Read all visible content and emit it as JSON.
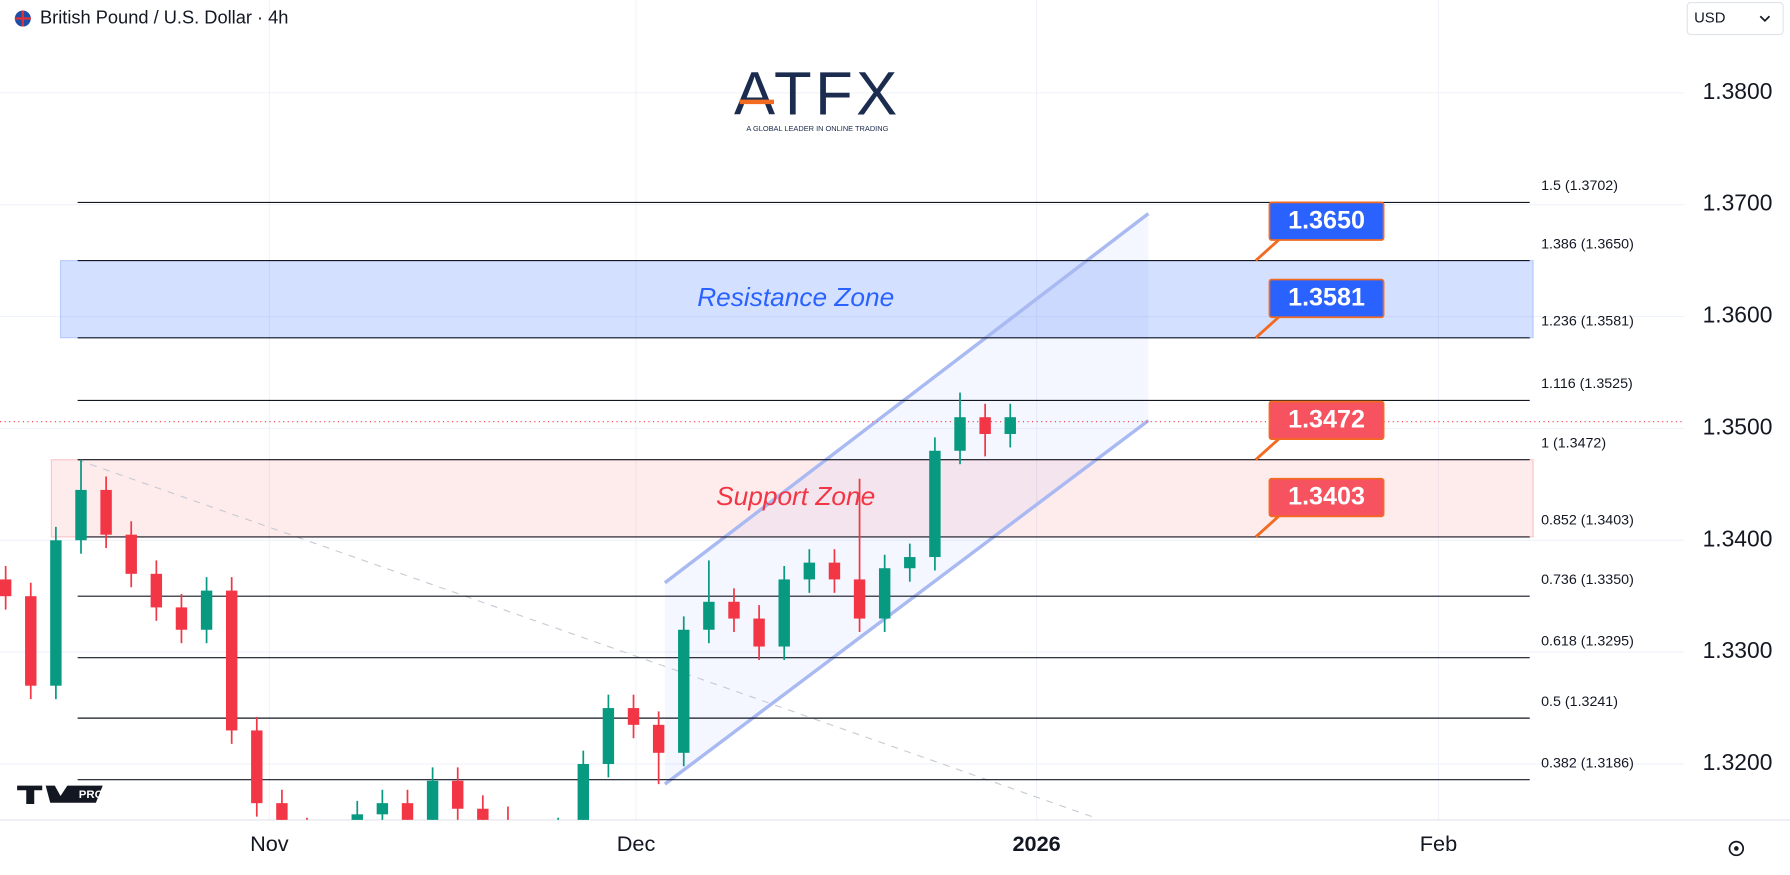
{
  "header": {
    "symbol": "British Pound / U.S. Dollar · 4h",
    "currency": "USD"
  },
  "logo": {
    "brand": "ATFX",
    "tagline": "A GLOBAL LEADER IN ONLINE TRADING"
  },
  "badge": "PRO",
  "chart_data": {
    "type": "candlestick",
    "up_color": "#089981",
    "down_color": "#f23645",
    "x": [
      -21,
      -19,
      -17,
      -15,
      -13,
      -11,
      -9,
      -7,
      -5,
      -3,
      -1,
      1,
      3,
      5,
      7,
      9,
      11,
      13,
      15,
      17,
      19,
      21,
      23,
      25,
      27,
      29,
      31,
      33,
      35,
      37,
      39,
      41,
      43,
      45,
      47,
      49,
      51,
      53,
      55,
      57,
      59
    ],
    "open": [
      1.3365,
      1.335,
      1.327,
      1.34,
      1.3445,
      1.3405,
      1.337,
      1.334,
      1.332,
      1.3355,
      1.323,
      1.3165,
      1.314,
      1.312,
      1.313,
      1.3155,
      1.3165,
      1.315,
      1.3185,
      1.316,
      1.315,
      1.3135,
      1.313,
      1.314,
      1.32,
      1.325,
      1.3235,
      1.321,
      1.332,
      1.3345,
      1.333,
      1.3305,
      1.3365,
      1.338,
      1.3365,
      1.333,
      1.3375,
      1.3385,
      1.348,
      1.351,
      1.3495
    ],
    "high": [
      1.3377,
      1.3362,
      1.3412,
      1.3472,
      1.3457,
      1.3417,
      1.3382,
      1.3352,
      1.3367,
      1.3367,
      1.3242,
      1.3177,
      1.3152,
      1.3142,
      1.3167,
      1.3177,
      1.3177,
      1.3197,
      1.3197,
      1.3172,
      1.3162,
      1.3147,
      1.3152,
      1.3212,
      1.3262,
      1.3262,
      1.3247,
      1.3332,
      1.3382,
      1.3357,
      1.3342,
      1.3377,
      1.3392,
      1.3392,
      1.3455,
      1.3387,
      1.3397,
      1.3492,
      1.3532,
      1.3522,
      1.3522
    ],
    "low": [
      1.3338,
      1.3258,
      1.3258,
      1.3388,
      1.3393,
      1.3358,
      1.3328,
      1.3308,
      1.3308,
      1.3218,
      1.3153,
      1.3128,
      1.3108,
      1.3108,
      1.3118,
      1.3143,
      1.3138,
      1.3138,
      1.3148,
      1.3138,
      1.3123,
      1.3118,
      1.3118,
      1.3128,
      1.3188,
      1.3223,
      1.3182,
      1.3198,
      1.3308,
      1.3318,
      1.3293,
      1.3293,
      1.3353,
      1.3353,
      1.3318,
      1.3318,
      1.3363,
      1.3373,
      1.3468,
      1.3475,
      1.3483
    ],
    "close": [
      1.335,
      1.327,
      1.34,
      1.3445,
      1.3405,
      1.337,
      1.334,
      1.332,
      1.3355,
      1.323,
      1.3165,
      1.314,
      1.312,
      1.313,
      1.3155,
      1.3165,
      1.315,
      1.3185,
      1.316,
      1.315,
      1.3135,
      1.313,
      1.314,
      1.32,
      1.325,
      1.3235,
      1.321,
      1.332,
      1.3345,
      1.333,
      1.3305,
      1.3365,
      1.338,
      1.3365,
      1.333,
      1.3375,
      1.3385,
      1.348,
      1.351,
      1.3495,
      1.351
    ],
    "xlim": [
      -21.45,
      112.64
    ],
    "xticks": [
      {
        "value": 0,
        "label": "Nov"
      },
      {
        "value": 29.2,
        "label": "Dec"
      },
      {
        "value": 61.1,
        "label": "2026"
      },
      {
        "value": 93.1,
        "label": "Feb"
      }
    ],
    "ylim": [
      1.315,
      1.38827
    ],
    "yticks": [
      {
        "value": 1.32,
        "label": "1.3200"
      },
      {
        "value": 1.33,
        "label": "1.3300"
      },
      {
        "value": 1.34,
        "label": "1.3400"
      },
      {
        "value": 1.35,
        "label": "1.3500"
      },
      {
        "value": 1.36,
        "label": "1.3600"
      },
      {
        "value": 1.37,
        "label": "1.3700"
      },
      {
        "value": 1.38,
        "label": "1.3800"
      }
    ],
    "grid": true,
    "fib_levels": [
      {
        "value": 1.3702,
        "label": "1.5 (1.3702)"
      },
      {
        "value": 1.365,
        "label": "1.386 (1.3650)"
      },
      {
        "value": 1.3581,
        "label": "1.236 (1.3581)"
      },
      {
        "value": 1.3525,
        "label": "1.116 (1.3525)"
      },
      {
        "value": 1.3472,
        "label": "1 (1.3472)"
      },
      {
        "value": 1.3403,
        "label": "0.852 (1.3403)"
      },
      {
        "value": 1.335,
        "label": "0.736 (1.3350)"
      },
      {
        "value": 1.3295,
        "label": "0.618 (1.3295)"
      },
      {
        "value": 1.3241,
        "label": "0.5 (1.3241)"
      },
      {
        "value": 1.3186,
        "label": "0.382 (1.3186)"
      }
    ],
    "zones": [
      {
        "name": "Resistance Zone",
        "low": 1.3581,
        "high": 1.365,
        "color": "#2962ff"
      },
      {
        "name": "Support Zone",
        "low": 1.3403,
        "high": 1.3472,
        "color": "#f23645"
      }
    ],
    "callouts": [
      {
        "value": 1.365,
        "label": "1.3650",
        "color": "#2962ff"
      },
      {
        "value": 1.3581,
        "label": "1.3581",
        "color": "#2962ff"
      },
      {
        "value": 1.3472,
        "label": "1.3472",
        "color": "#f7525f"
      },
      {
        "value": 1.3403,
        "label": "1.3403",
        "color": "#f7525f"
      }
    ],
    "channel": {
      "x": [
        31.5,
        70
      ],
      "upper": [
        1.3362,
        1.3692
      ],
      "lower": [
        1.3182,
        1.3507
      ],
      "color": "#a9b9f2"
    },
    "trendline": {
      "x": [
        -15.3,
        65.5
      ],
      "values": [
        1.3472,
        1.3153
      ]
    },
    "last_price": 1.3506,
    "last_price_color": "#f23645"
  }
}
